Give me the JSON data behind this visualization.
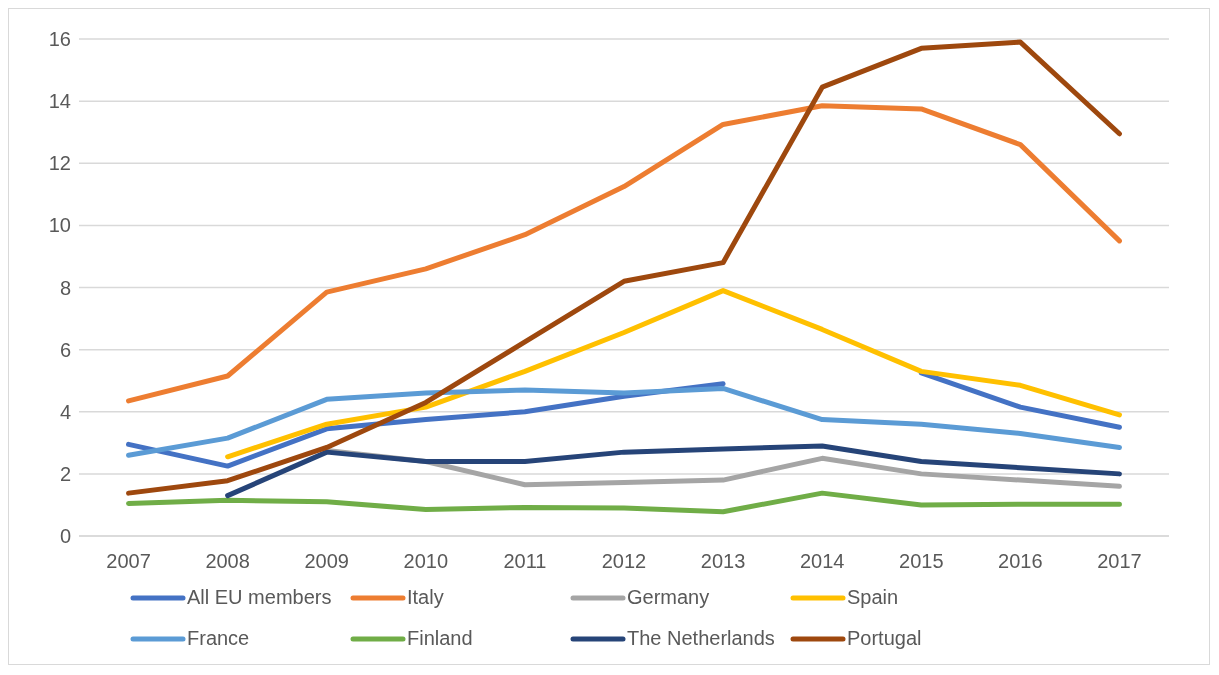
{
  "chart_data": {
    "type": "line",
    "categories": [
      "2007",
      "2008",
      "2009",
      "2010",
      "2011",
      "2012",
      "2013",
      "2014",
      "2015",
      "2016",
      "2017"
    ],
    "series": [
      {
        "name": "All EU members",
        "color": "#4472c4",
        "values": [
          2.95,
          2.25,
          3.45,
          3.75,
          4.0,
          4.5,
          4.9,
          null,
          5.25,
          4.15,
          3.5
        ]
      },
      {
        "name": "Italy",
        "color": "#ed7d31",
        "values": [
          4.35,
          5.15,
          7.85,
          8.6,
          9.7,
          11.25,
          13.25,
          13.85,
          13.75,
          12.6,
          9.5
        ]
      },
      {
        "name": "Germany",
        "color": "#a5a5a5",
        "values": [
          null,
          null,
          2.75,
          2.4,
          1.65,
          1.72,
          1.8,
          2.5,
          2.0,
          1.8,
          1.6
        ]
      },
      {
        "name": "Spain",
        "color": "#ffc000",
        "values": [
          null,
          2.55,
          3.6,
          4.15,
          5.3,
          6.55,
          7.9,
          6.65,
          5.3,
          4.85,
          3.9
        ]
      },
      {
        "name": "France",
        "color": "#5b9bd5",
        "values": [
          2.6,
          3.15,
          4.4,
          4.6,
          4.7,
          4.6,
          4.75,
          3.75,
          3.6,
          3.3,
          2.85
        ]
      },
      {
        "name": "Finland",
        "color": "#70ad47",
        "values": [
          1.05,
          1.15,
          1.1,
          0.85,
          0.92,
          0.9,
          0.78,
          1.38,
          1.0,
          1.02,
          1.02
        ]
      },
      {
        "name": "The Netherlands",
        "color": "#264478",
        "values": [
          null,
          1.3,
          2.7,
          2.4,
          2.4,
          2.7,
          2.8,
          2.9,
          2.4,
          2.2,
          2.0
        ]
      },
      {
        "name": "Portugal",
        "color": "#9e480e",
        "values": [
          1.38,
          1.78,
          2.85,
          4.3,
          6.25,
          8.2,
          8.8,
          14.45,
          15.7,
          15.9,
          12.95
        ]
      }
    ],
    "ylim": [
      0,
      16
    ],
    "yticks": [
      0,
      2,
      4,
      6,
      8,
      10,
      12,
      14,
      16
    ],
    "grid": "y",
    "legend": "bottom",
    "marker": "none",
    "line_style": "solid"
  }
}
